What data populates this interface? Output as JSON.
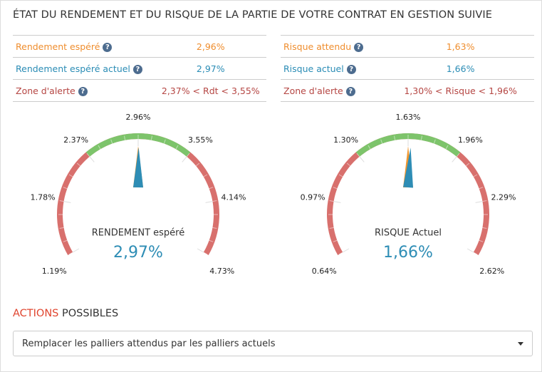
{
  "header": {
    "title": "ÉTAT DU RENDEMENT ET DU RISQUE DE LA PARTIE DE VOTRE CONTRAT EN GESTION SUIVIE"
  },
  "left_table": {
    "rows": [
      [
        "Rendement espéré",
        "2,96%"
      ],
      [
        "Rendement espéré actuel",
        "2,97%"
      ],
      [
        "Zone d'alerte",
        "2,37% < Rdt < 3,55%"
      ]
    ]
  },
  "right_table": {
    "rows": [
      [
        "Risque attendu",
        "1,63%"
      ],
      [
        "Risque actuel",
        "1,66%"
      ],
      [
        "Zone d'alerte",
        "1,30% < Risque < 1,96%"
      ]
    ]
  },
  "gauges": [
    {
      "label": "RENDEMENT espéré",
      "value_label": "2,97%",
      "value": 2.97,
      "expected": 2.96,
      "green_zone": [
        2.37,
        3.55
      ],
      "ticks": [
        {
          "value": 1.19,
          "label": "1.19%"
        },
        {
          "value": 1.78,
          "label": "1.78%"
        },
        {
          "value": 2.37,
          "label": "2.37%"
        },
        {
          "value": 2.96,
          "label": "2.96%"
        },
        {
          "value": 3.55,
          "label": "3.55%"
        },
        {
          "value": 4.14,
          "label": "4.14%"
        },
        {
          "value": 4.73,
          "label": "4.73%"
        }
      ]
    },
    {
      "label": "RISQUE Actuel",
      "value_label": "1,66%",
      "value": 1.66,
      "expected": 1.63,
      "green_zone": [
        1.3,
        1.96
      ],
      "ticks": [
        {
          "value": 0.64,
          "label": "0.64%"
        },
        {
          "value": 0.97,
          "label": "0.97%"
        },
        {
          "value": 1.3,
          "label": "1.30%"
        },
        {
          "value": 1.63,
          "label": "1.63%"
        },
        {
          "value": 1.96,
          "label": "1.96%"
        },
        {
          "value": 2.29,
          "label": "2.29%"
        },
        {
          "value": 2.62,
          "label": "2.62%"
        }
      ]
    }
  ],
  "actions": {
    "title_accent": "ACTIONS",
    "title_rest": "POSSIBLES",
    "select": "Remplacer les palliers attendus par les palliers actuels"
  }
}
